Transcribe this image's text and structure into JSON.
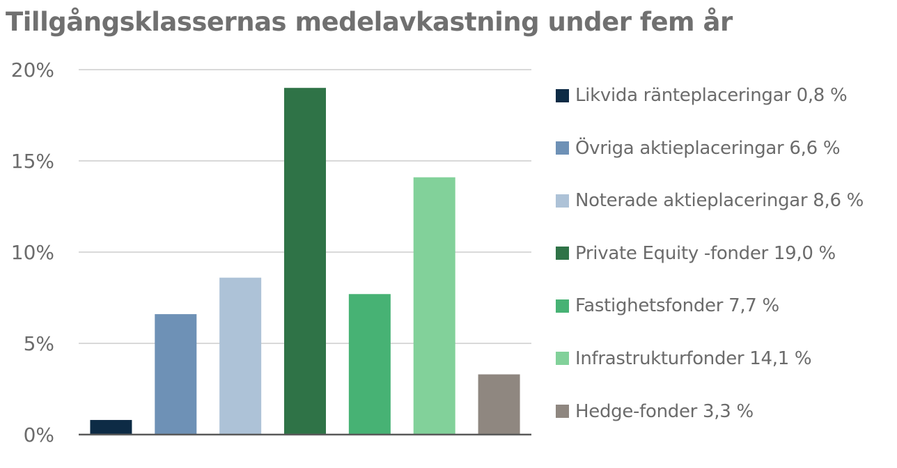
{
  "chart_data": {
    "type": "bar",
    "title": "Tillgångsklassernas medelavkastning under fem år",
    "xlabel": "",
    "ylabel": "",
    "ylim": [
      0,
      20
    ],
    "y_ticks": [
      "0%",
      "5%",
      "10%",
      "15%",
      "20%"
    ],
    "y_tick_values": [
      0,
      5,
      10,
      15,
      20
    ],
    "grid": true,
    "legend_position": "right",
    "categories": [
      "Likvida ränteplaceringar",
      "Övriga aktieplaceringar",
      "Noterade aktieplaceringar",
      "Private Equity -fonder",
      "Fastighetsfonder",
      "Infrastrukturfonder",
      "Hedge-fonder"
    ],
    "values": [
      0.8,
      6.6,
      8.6,
      19.0,
      7.7,
      14.1,
      3.3
    ],
    "colors": [
      "#0d2b45",
      "#6e91b6",
      "#adc2d7",
      "#2f7347",
      "#47b274",
      "#82d19a",
      "#8f8780"
    ],
    "legend": [
      "Likvida ränteplaceringar 0,8 %",
      "Övriga aktieplaceringar 6,6 %",
      "Noterade aktieplaceringar 8,6 %",
      "Private Equity -fonder 19,0 %",
      "Fastighetsfonder 7,7 %",
      "Infrastrukturfonder 14,1 %",
      "Hedge-fonder 3,3 %"
    ],
    "gridline_color": "#d9d9d9",
    "axis_color": "#595959"
  }
}
